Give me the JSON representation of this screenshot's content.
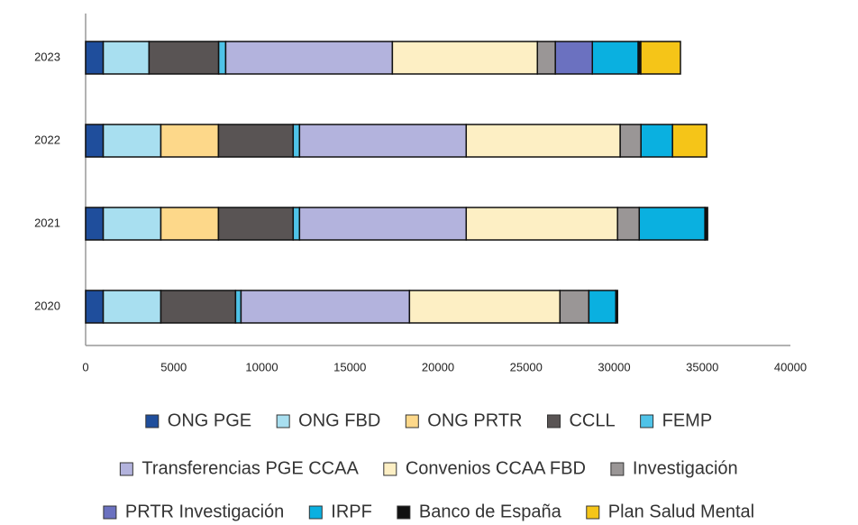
{
  "chart_data": {
    "type": "bar",
    "orientation": "horizontal",
    "stacked": true,
    "categories": [
      "2020",
      "2021",
      "2022",
      "2023"
    ],
    "series": [
      {
        "name": "ONG PGE",
        "color": "#1f4e9c",
        "values": [
          1000,
          1000,
          1000,
          1000
        ]
      },
      {
        "name": "ONG FBD",
        "color": "#a8dff0",
        "values": [
          3270,
          3270,
          3270,
          2600
        ]
      },
      {
        "name": "ONG PRTR",
        "color": "#fdd88a",
        "values": [
          0,
          3270,
          3270,
          0
        ]
      },
      {
        "name": "CCLL",
        "color": "#595454",
        "values": [
          4240,
          4240,
          4240,
          3950
        ]
      },
      {
        "name": "FEMP",
        "color": "#4fc3e8",
        "values": [
          310,
          360,
          360,
          400
        ]
      },
      {
        "name": "Transferencias PGE CCAA",
        "color": "#b3b3dd",
        "values": [
          9560,
          9460,
          9460,
          9460
        ]
      },
      {
        "name": "Convenios CCAA FBD",
        "color": "#fdefc4",
        "values": [
          8540,
          8590,
          8740,
          8230
        ]
      },
      {
        "name": "Investigación",
        "color": "#9a9696",
        "values": [
          1640,
          1230,
          1180,
          1020
        ]
      },
      {
        "name": "PRTR Investigación",
        "color": "#6b71c0",
        "values": [
          0,
          0,
          0,
          2100
        ]
      },
      {
        "name": "IRPF",
        "color": "#0ab0e0",
        "values": [
          1530,
          3730,
          1790,
          2600
        ]
      },
      {
        "name": "Banco de España",
        "color": "#111111",
        "values": [
          100,
          150,
          0,
          150
        ]
      },
      {
        "name": "Plan Salud Mental",
        "color": "#f5c518",
        "values": [
          0,
          0,
          1940,
          2250
        ]
      }
    ],
    "xlim": [
      0,
      40000
    ],
    "xticks": [
      0,
      5000,
      10000,
      15000,
      20000,
      25000,
      30000,
      35000,
      40000
    ],
    "grid": false,
    "legend": "bottom"
  }
}
